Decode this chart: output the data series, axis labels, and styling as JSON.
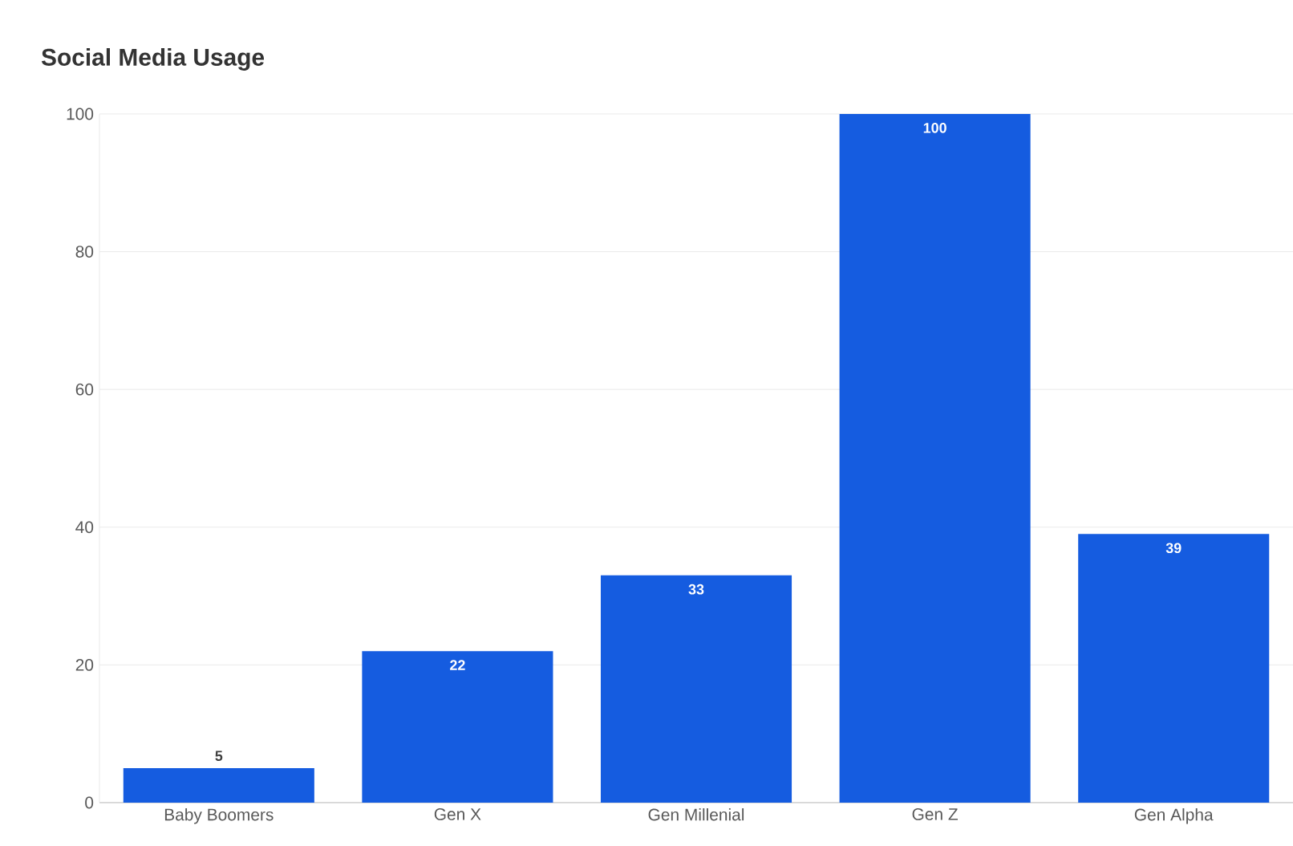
{
  "chart_data": {
    "type": "bar",
    "title": "Social Media Usage",
    "categories": [
      "Baby Boomers",
      "Gen X",
      "Gen Millenial",
      "Gen Z",
      "Gen Alpha"
    ],
    "values": [
      5,
      22,
      33,
      100,
      39
    ],
    "color": "#155ce0",
    "ylim": [
      0,
      100
    ],
    "yticks": [
      0,
      20,
      40,
      60,
      80,
      100
    ],
    "grid": "y",
    "data_labels": true
  }
}
